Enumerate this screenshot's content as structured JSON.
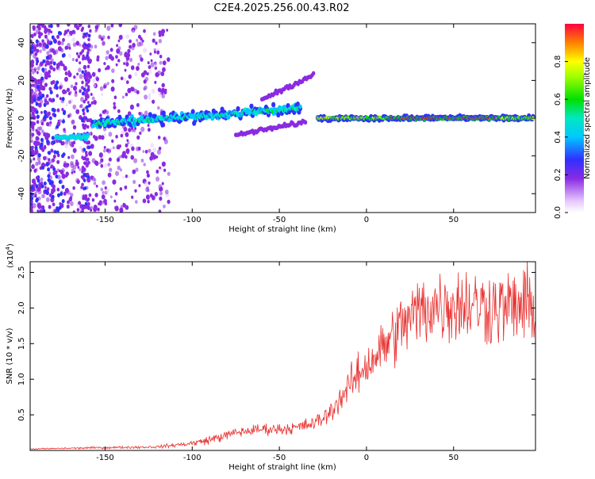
{
  "title": "C2E4.2025.256.00.43.R02",
  "chart_data": [
    {
      "type": "heatmap",
      "name": "spectrogram",
      "xlabel": "Height of straight line (km)",
      "ylabel": "Frequency (Hz)",
      "xlim": [
        -193,
        97
      ],
      "ylim": [
        -50,
        50
      ],
      "xticks": [
        -150,
        -100,
        -50,
        0,
        50
      ],
      "yticks": [
        -40,
        -20,
        0,
        20,
        40
      ],
      "colorbar": {
        "label": "Normalized spectral amplitude",
        "range": [
          0,
          1
        ],
        "ticks": [
          0.0,
          0.2,
          0.4,
          0.6,
          0.8
        ],
        "tick_labels": [
          "0.0",
          "0.2",
          "0.4",
          "0.6",
          "0.8"
        ]
      },
      "features": [
        {
          "name": "low-altitude segment",
          "x": [
            -178,
            -160
          ],
          "freq": -10,
          "amplitude": 0.35
        },
        {
          "name": "main trend",
          "x": [
            -157,
            -38
          ],
          "freq": [
            -3,
            5
          ],
          "amplitude": 0.25
        },
        {
          "name": "upper branch",
          "x": [
            -60,
            -28
          ],
          "freq": [
            10,
            24
          ],
          "amplitude": 0.1
        },
        {
          "name": "lower branch",
          "x": [
            -75,
            -35
          ],
          "freq": [
            -10,
            0
          ],
          "amplitude": 0.15
        },
        {
          "name": "strong signal",
          "x": [
            -28,
            96
          ],
          "freq": 0,
          "amplitude": 0.9
        }
      ]
    },
    {
      "type": "line",
      "name": "snr",
      "xlabel": "Height of straight line (km)",
      "ylabel": "SNR (10 * v/v)",
      "multiplier_label": "(x10",
      "multiplier_exp": "4",
      "multiplier_close": ")",
      "xlim": [
        -193,
        97
      ],
      "ylim": [
        0,
        2.65
      ],
      "xticks": [
        -150,
        -100,
        -50,
        0,
        50
      ],
      "yticks": [
        0.5,
        1.0,
        1.5,
        2.0,
        2.5
      ],
      "ytick_labels": [
        "0.5",
        "1.0",
        "1.5",
        "2.0",
        "2.5"
      ],
      "color": "#e8312f",
      "series": [
        {
          "name": "SNR",
          "trend_x": [
            -193,
            -150,
            -120,
            -100,
            -90,
            -75,
            -60,
            -50,
            -40,
            -30,
            -22,
            -10,
            0,
            10,
            20,
            30,
            40,
            60,
            80,
            97
          ],
          "trend_y": [
            0.02,
            0.04,
            0.05,
            0.1,
            0.15,
            0.25,
            0.3,
            0.3,
            0.32,
            0.38,
            0.5,
            0.9,
            1.2,
            1.45,
            1.75,
            1.95,
            2.05,
            2.05,
            2.0,
            2.05
          ]
        }
      ]
    }
  ]
}
